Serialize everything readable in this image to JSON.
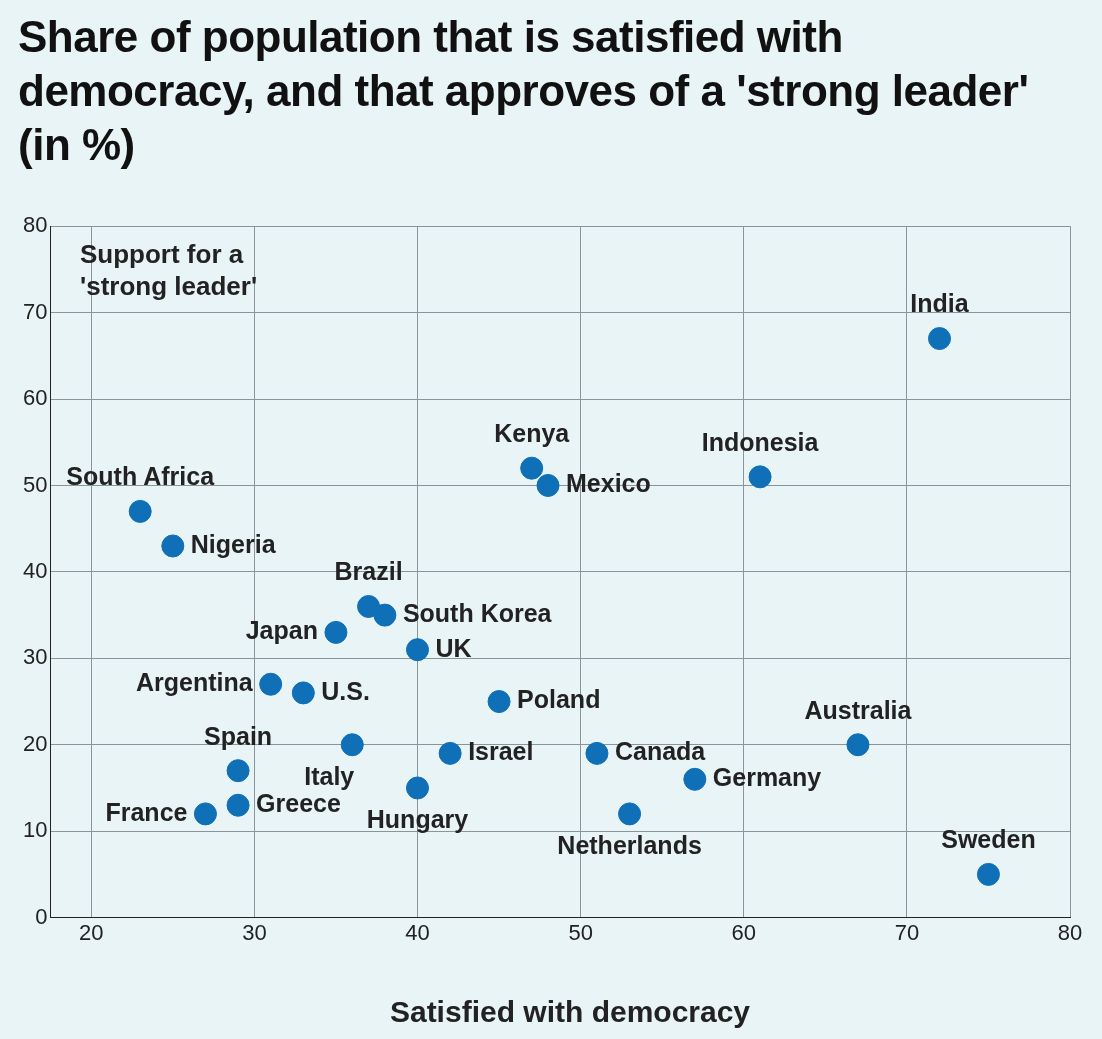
{
  "chart_data": {
    "type": "scatter",
    "title": "Share of population that is satisfied with democracy, and that approves of a 'strong leader' (in %)",
    "xlabel": "Satisfied with democracy",
    "ylabel": "Support for a 'strong leader'",
    "xlim": [
      17.5,
      80
    ],
    "xticks": [
      20,
      30,
      40,
      50,
      60,
      70,
      80
    ],
    "ylim": [
      0,
      80
    ],
    "yticks": [
      0,
      10,
      20,
      30,
      40,
      50,
      60,
      70,
      80
    ],
    "grid": true,
    "legend": false,
    "marker": "circle",
    "series": [
      {
        "color": "#0f70b7",
        "x": [
          72,
          61,
          47,
          48,
          23,
          25,
          37,
          38,
          35,
          40,
          31,
          33,
          45,
          67,
          36,
          42,
          51,
          29,
          57,
          40,
          29,
          27,
          53,
          75
        ],
        "values": [
          67,
          51,
          52,
          50,
          47,
          43,
          36,
          35,
          33,
          31,
          27,
          26,
          25,
          20,
          20,
          19,
          19,
          17,
          16,
          15,
          13,
          12,
          12,
          5
        ]
      }
    ],
    "annotations": [
      {
        "text": "India",
        "x": 72,
        "y": 67
      },
      {
        "text": "Indonesia",
        "x": 61,
        "y": 51
      },
      {
        "text": "Kenya",
        "x": 47,
        "y": 52
      },
      {
        "text": "Mexico",
        "x": 48,
        "y": 50
      },
      {
        "text": "South Africa",
        "x": 23,
        "y": 47
      },
      {
        "text": "Nigeria",
        "x": 25,
        "y": 43
      },
      {
        "text": "Brazil",
        "x": 37,
        "y": 36
      },
      {
        "text": "South Korea",
        "x": 38,
        "y": 35
      },
      {
        "text": "Japan",
        "x": 35,
        "y": 33
      },
      {
        "text": "UK",
        "x": 40,
        "y": 31
      },
      {
        "text": "Argentina",
        "x": 31,
        "y": 27
      },
      {
        "text": "U.S.",
        "x": 33,
        "y": 26
      },
      {
        "text": "Poland",
        "x": 45,
        "y": 25
      },
      {
        "text": "Australia",
        "x": 67,
        "y": 20
      },
      {
        "text": "Italy",
        "x": 36,
        "y": 20
      },
      {
        "text": "Israel",
        "x": 42,
        "y": 19
      },
      {
        "text": "Canada",
        "x": 51,
        "y": 19
      },
      {
        "text": "Spain",
        "x": 29,
        "y": 17
      },
      {
        "text": "Germany",
        "x": 57,
        "y": 16
      },
      {
        "text": "Hungary",
        "x": 40,
        "y": 15
      },
      {
        "text": "Greece",
        "x": 29,
        "y": 13
      },
      {
        "text": "France",
        "x": 27,
        "y": 12
      },
      {
        "text": "Netherlands",
        "x": 53,
        "y": 12
      },
      {
        "text": "Sweden",
        "x": 75,
        "y": 5
      }
    ]
  }
}
